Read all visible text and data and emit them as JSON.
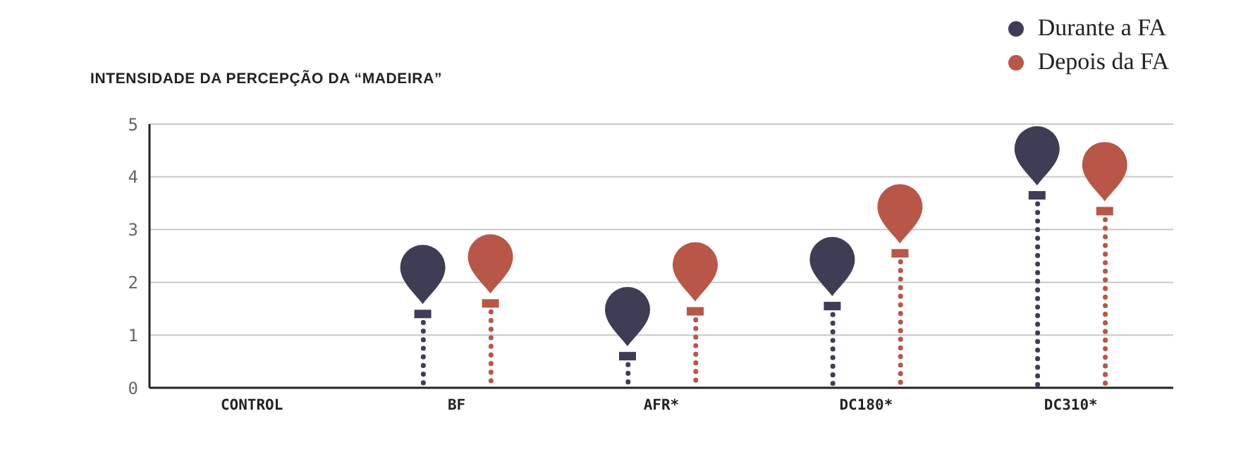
{
  "chart_data": {
    "type": "lollipop",
    "title": "INTENSIDADE DA PERCEPÇÃO DA “MADEIRA”",
    "categories": [
      "CONTROL",
      "BF",
      "AFR*",
      "DC180*",
      "DC310*"
    ],
    "series": [
      {
        "name": "Durante a FA",
        "color": "#3f3d56",
        "values": [
          null,
          1.4,
          0.6,
          1.55,
          3.65
        ]
      },
      {
        "name": "Depois da FA",
        "color": "#b85647",
        "values": [
          null,
          1.6,
          1.45,
          2.55,
          3.35
        ]
      }
    ],
    "ylim": [
      0,
      5
    ],
    "yticks": [
      0,
      1,
      2,
      3,
      4,
      5
    ],
    "grid": "y",
    "marker": "square",
    "legend": "top right",
    "line_style": "dotted"
  }
}
